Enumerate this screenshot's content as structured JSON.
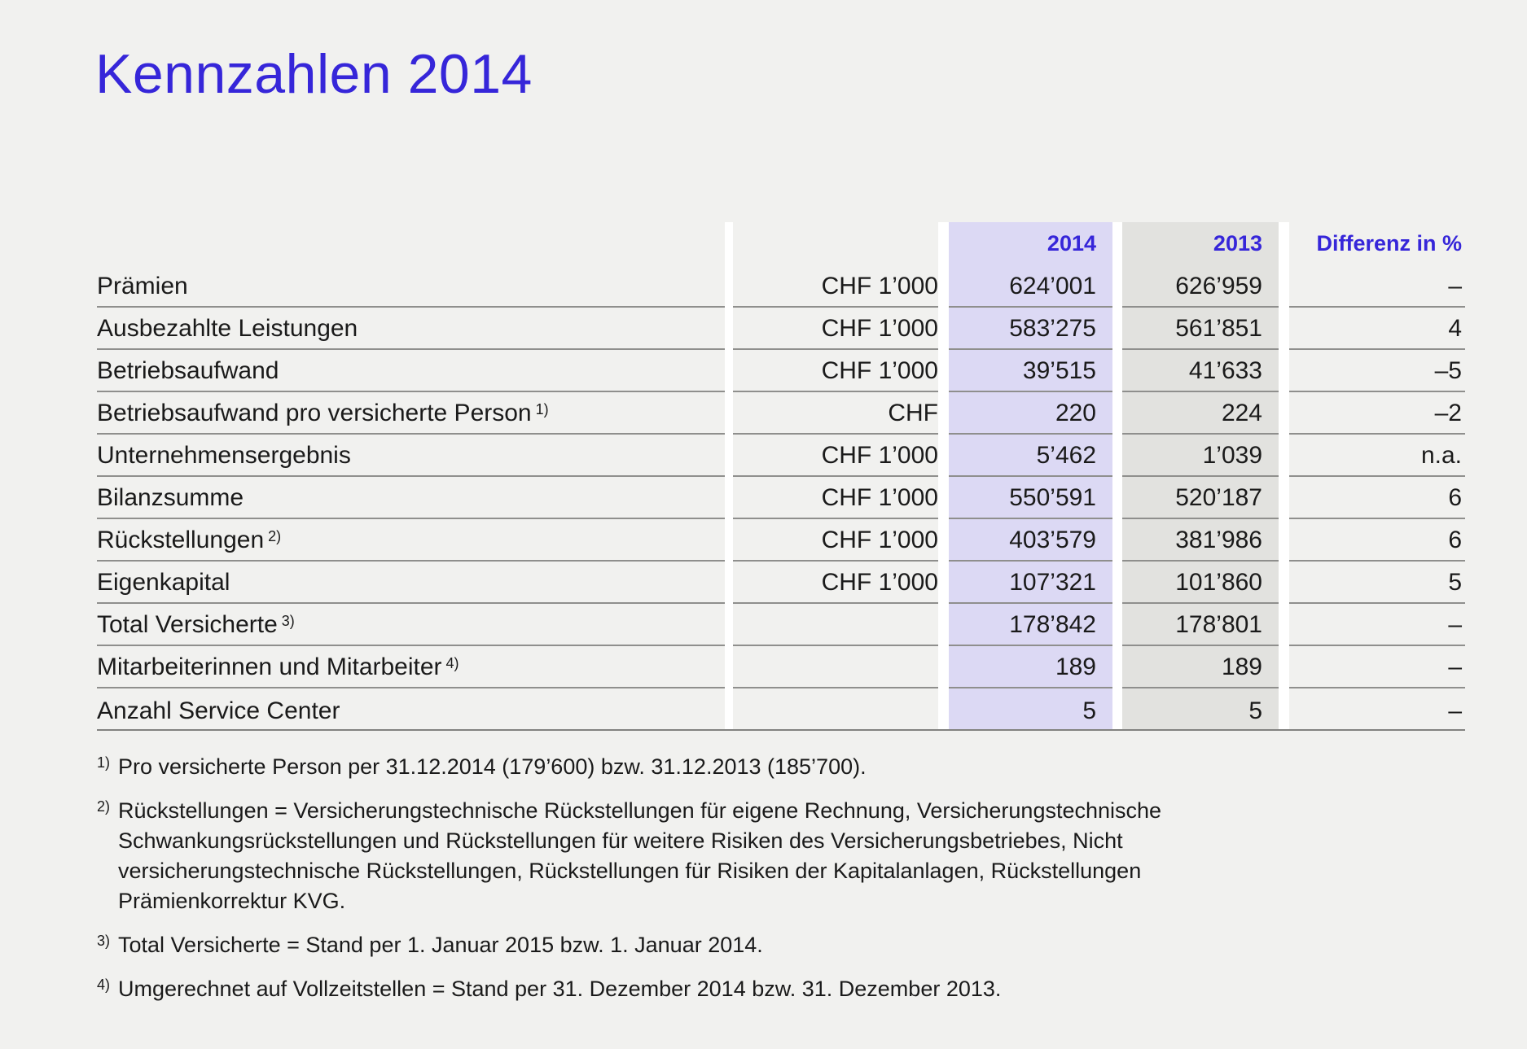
{
  "page": {
    "title": "Kennzahlen 2014"
  },
  "colors": {
    "background": "#f1f1ef",
    "accent_blue": "#3626d9",
    "column_2014_bg": "#dcd9f4",
    "column_2013_bg": "#e2e2df",
    "rule_gray": "#8f8f8d",
    "text": "#1a1a1a"
  },
  "table": {
    "headers": {
      "col_2014": "2014",
      "col_2013": "2013",
      "col_diff": "Differenz in %"
    },
    "rows": [
      {
        "label": "Prämien",
        "sup": "",
        "unit": "CHF 1’000",
        "v2014": "624’001",
        "v2013": "626’959",
        "diff": "–"
      },
      {
        "label": "Ausbezahlte Leistungen",
        "sup": "",
        "unit": "CHF 1’000",
        "v2014": "583’275",
        "v2013": "561’851",
        "diff": "4"
      },
      {
        "label": "Betriebsaufwand",
        "sup": "",
        "unit": "CHF 1’000",
        "v2014": "39’515",
        "v2013": "41’633",
        "diff": "–5"
      },
      {
        "label": "Betriebsaufwand pro versicherte Person",
        "sup": "1)",
        "unit": "CHF",
        "v2014": "220",
        "v2013": "224",
        "diff": "–2"
      },
      {
        "label": "Unternehmensergebnis",
        "sup": "",
        "unit": "CHF 1’000",
        "v2014": "5’462",
        "v2013": "1’039",
        "diff": "n.a."
      },
      {
        "label": "Bilanzsumme",
        "sup": "",
        "unit": "CHF 1’000",
        "v2014": "550’591",
        "v2013": "520’187",
        "diff": "6"
      },
      {
        "label": "Rückstellungen",
        "sup": "2)",
        "unit": "CHF 1’000",
        "v2014": "403’579",
        "v2013": "381’986",
        "diff": "6"
      },
      {
        "label": "Eigenkapital",
        "sup": "",
        "unit": "CHF 1’000",
        "v2014": "107’321",
        "v2013": "101’860",
        "diff": "5"
      },
      {
        "label": "Total Versicherte",
        "sup": "3)",
        "unit": "",
        "v2014": "178’842",
        "v2013": "178’801",
        "diff": "–"
      },
      {
        "label": "Mitarbeiterinnen und Mitarbeiter",
        "sup": "4)",
        "unit": "",
        "v2014": "189",
        "v2013": "189",
        "diff": "–"
      },
      {
        "label": "Anzahl Service Center",
        "sup": "",
        "unit": "",
        "v2014": "5",
        "v2013": "5",
        "diff": "–"
      }
    ]
  },
  "footnotes": [
    {
      "marker": "1)",
      "lines": [
        "Pro versicherte Person per 31.12.2014 (179’600) bzw. 31.12.2013 (185’700)."
      ]
    },
    {
      "marker": "2)",
      "lines": [
        "Rückstellungen = Versicherungstechnische Rückstellungen für eigene Rechnung, Versicherungstechnische",
        "Schwankungsrückstellungen und Rückstellungen für weitere Risiken des Versicherungsbetriebes, Nicht",
        "versicherungstechnische Rückstellungen, Rückstellungen für Risiken der Kapitalanlagen, Rückstellungen",
        "Prämienkorrektur KVG."
      ]
    },
    {
      "marker": "3)",
      "lines": [
        "Total Versicherte = Stand per 1. Januar 2015 bzw. 1. Januar 2014."
      ]
    },
    {
      "marker": "4)",
      "lines": [
        "Umgerechnet auf Vollzeitstellen = Stand per 31. Dezember 2014 bzw. 31. Dezember 2013."
      ]
    }
  ]
}
